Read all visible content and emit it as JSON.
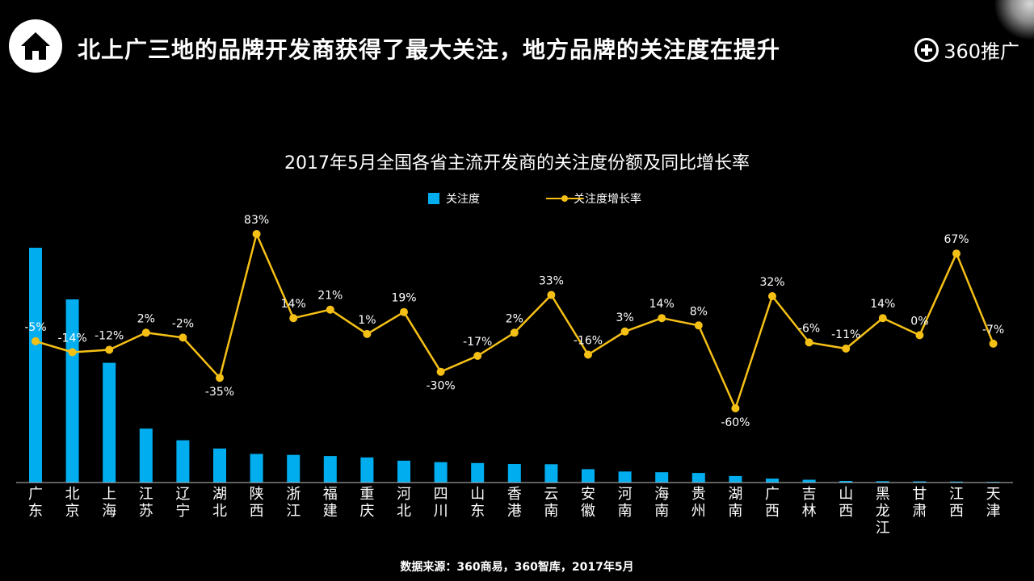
{
  "header": {
    "title": "北上广三地的品牌开发商获得了最大关注，地方品牌的关注度在提升",
    "home_icon": "home-icon",
    "brand_icon": "plus-circle-icon",
    "brand_text": "360推广"
  },
  "footer": {
    "source": "数据来源：360商易，360智库，2017年5月"
  },
  "colors": {
    "background": "#000000",
    "bar": "#00aeef",
    "line": "#f5c016",
    "text": "#ffffff"
  },
  "chart_data": {
    "type": "bar",
    "title": "2017年5月全国各省主流开发商的关注度份额及同比增长率",
    "categories": [
      "广东",
      "北京",
      "上海",
      "江苏",
      "辽宁",
      "湖北",
      "陕西",
      "浙江",
      "福建",
      "重庆",
      "河北",
      "四川",
      "山东",
      "香港",
      "云南",
      "安徽",
      "河南",
      "海南",
      "贵州",
      "湖南",
      "广西",
      "吉林",
      "山西",
      "黑龙江",
      "甘肃",
      "江西",
      "天津"
    ],
    "series": [
      {
        "name": "关注度",
        "type": "bar",
        "values": [
          100,
          78,
          51,
          23,
          18,
          14.5,
          12.2,
          11.8,
          11.3,
          10.7,
          9.3,
          8.7,
          8.3,
          7.9,
          7.8,
          5.7,
          4.7,
          4.4,
          4.1,
          2.8,
          1.7,
          1.2,
          0.7,
          0.6,
          0.5,
          0.4,
          0.3
        ]
      },
      {
        "name": "关注度增长率",
        "type": "line",
        "values": [
          -5,
          -14,
          -12,
          2,
          -2,
          -35,
          83,
          14,
          21,
          1,
          19,
          -30,
          -17,
          2,
          33,
          -16,
          3,
          14,
          8,
          -60,
          32,
          -6,
          -11,
          14,
          0,
          67,
          -7
        ],
        "labels": [
          "-5%",
          "-14%",
          "-12%",
          "2%",
          "-2%",
          "-35%",
          "83%",
          "14%",
          "21%",
          "1%",
          "19%",
          "-30%",
          "-17%",
          "2%",
          "33%",
          "-16%",
          "3%",
          "14%",
          "8%",
          "-60%",
          "32%",
          "-6%",
          "-11%",
          "14%",
          "0%",
          "67%",
          "-7%"
        ]
      }
    ],
    "legend_position": "top-center",
    "grid": false
  }
}
